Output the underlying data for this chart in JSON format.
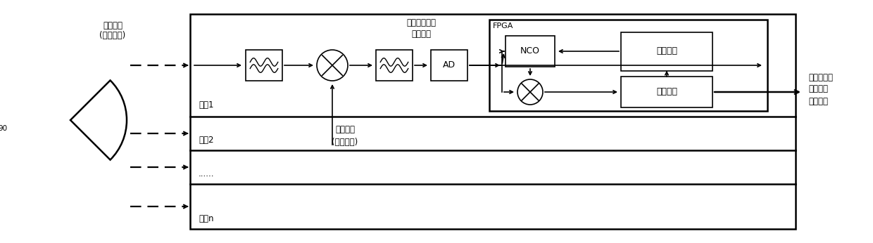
{
  "bg_color": "#ffffff",
  "fig_width": 12.4,
  "fig_height": 3.46,
  "dpi": 100,
  "label_calib_signal_1": "校准信号",
  "label_calib_signal_2": "(线性调频)",
  "label_channel1": "通道1",
  "label_channel2": "通道2",
  "label_channel_dots": "......",
  "label_channeln": "通道n",
  "label_lo_signal_1": "本振信号",
  "label_lo_signal_2": "(线性调频)",
  "label_IF_signal_1": "模拟中频信号",
  "label_IF_signal_2": "（点频）",
  "label_output_1": "校准后数字",
  "label_output_2": "基带信号",
  "label_output_3": "（点频）",
  "label_NCO": "NCO",
  "label_FPGA": "FPGA",
  "label_freq_meas": "频率测量",
  "label_dec_filter": "抽取滤波",
  "label_AD": "AD",
  "label_90": "90"
}
